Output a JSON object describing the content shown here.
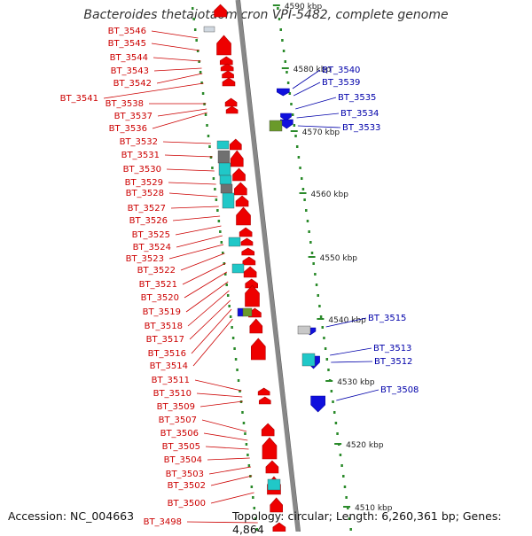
{
  "title": "Bacteroides thetaiotaomicron VPI-5482, complete genome",
  "footer": {
    "accession": "Accession: NC_004663",
    "topology": "Topology: circular; Length: 6,260,361 bp; Genes: 4,864"
  },
  "colors": {
    "forward_gene": "#ee0000",
    "reverse_gene": "#1010dd",
    "forward_label": "#cc0000",
    "reverse_label": "#0000aa",
    "cyan_feature": "#20c8c8",
    "gray_feature": "#707070",
    "olive_feature": "#6a9a2a",
    "backbone": "#888888",
    "tick": "#2a8a2a"
  },
  "scale_labels": [
    "4590 kbp",
    "4580 kbp",
    "4570 kbp",
    "4560 kbp",
    "4550 kbp",
    "4540 kbp",
    "4530 kbp",
    "4520 kbp",
    "4510 kbp"
  ],
  "forward_labels": [
    "BT_3546",
    "BT_3545",
    "BT_3544",
    "BT_3543",
    "BT_3542",
    "BT_3541",
    "BT_3538",
    "BT_3537",
    "BT_3536",
    "BT_3532",
    "BT_3531",
    "BT_3530",
    "BT_3529",
    "BT_3528",
    "BT_3527",
    "BT_3526",
    "BT_3525",
    "BT_3524",
    "BT_3523",
    "BT_3522",
    "BT_3521",
    "BT_3520",
    "BT_3519",
    "BT_3518",
    "BT_3517",
    "BT_3516",
    "BT_3514",
    "BT_3511",
    "BT_3510",
    "BT_3509",
    "BT_3507",
    "BT_3506",
    "BT_3505",
    "BT_3504",
    "BT_3503",
    "BT_3502",
    "BT_3500",
    "BT_3498"
  ],
  "reverse_labels": [
    "BT_3540",
    "BT_3539",
    "BT_3535",
    "BT_3534",
    "BT_3533",
    "BT_3515",
    "BT_3513",
    "BT_3512",
    "BT_3508"
  ]
}
